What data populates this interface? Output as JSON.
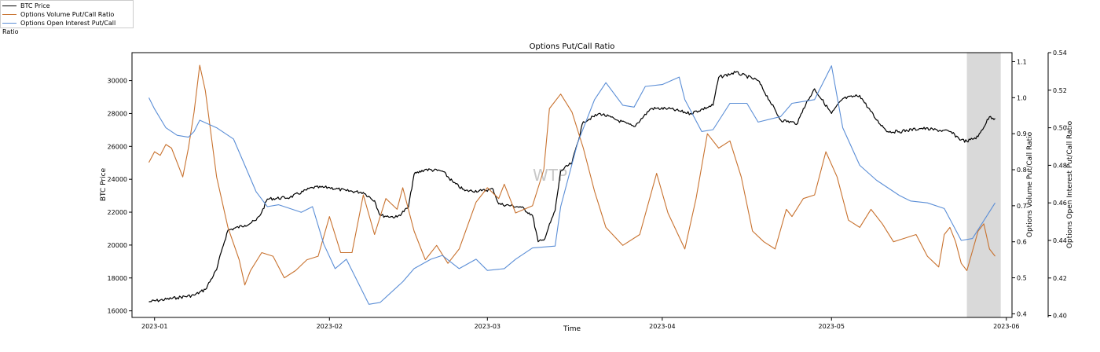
{
  "chart_data": {
    "type": "line",
    "title": "Options Put/Call Ratio",
    "xlabel": "Time",
    "watermark": "WTP",
    "x_ticks": [
      "2023-01",
      "2023-02",
      "2023-03",
      "2023-04",
      "2023-05",
      "2023-06"
    ],
    "x_range": [
      "2022-12-28",
      "2023-06-02"
    ],
    "shaded_region": [
      "2023-05-25",
      "2023-05-31"
    ],
    "axes": {
      "btc": {
        "label": "BTC Price",
        "ylim": [
          15600,
          31700
        ],
        "ticks": [
          16000,
          18000,
          20000,
          22000,
          24000,
          26000,
          28000,
          30000
        ]
      },
      "volume": {
        "label": "Options Volume Put/Call Ratio",
        "ylim": [
          0.39,
          1.125
        ],
        "ticks": [
          "0.4",
          "0.5",
          "0.6",
          "0.7",
          "0.8",
          "0.9",
          "1.0",
          "1.1"
        ]
      },
      "oi": {
        "label": "Options Open Interest Put/Call Ratio",
        "ylim": [
          0.399,
          0.54
        ],
        "ticks": [
          "0.40",
          "0.42",
          "0.44",
          "0.46",
          "0.48",
          "0.50",
          "0.52",
          "0.54"
        ]
      }
    },
    "series": [
      {
        "name": "BTC Price",
        "axis": "btc",
        "color": "#000000",
        "points": [
          [
            "2022-12-31",
            16550
          ],
          [
            "2023-01-05",
            16800
          ],
          [
            "2023-01-08",
            16950
          ],
          [
            "2023-01-10",
            17300
          ],
          [
            "2023-01-12",
            18500
          ],
          [
            "2023-01-13",
            19800
          ],
          [
            "2023-01-14",
            20900
          ],
          [
            "2023-01-17",
            21200
          ],
          [
            "2023-01-19",
            21500
          ],
          [
            "2023-01-20",
            22000
          ],
          [
            "2023-01-21",
            22800
          ],
          [
            "2023-01-25",
            22900
          ],
          [
            "2023-01-29",
            23500
          ],
          [
            "2023-02-01",
            23500
          ],
          [
            "2023-02-04",
            23300
          ],
          [
            "2023-02-07",
            23200
          ],
          [
            "2023-02-09",
            22700
          ],
          [
            "2023-02-10",
            21800
          ],
          [
            "2023-02-13",
            21700
          ],
          [
            "2023-02-15",
            22300
          ],
          [
            "2023-02-16",
            24300
          ],
          [
            "2023-02-18",
            24600
          ],
          [
            "2023-02-21",
            24500
          ],
          [
            "2023-02-23",
            23800
          ],
          [
            "2023-02-25",
            23300
          ],
          [
            "2023-02-28",
            23300
          ],
          [
            "2023-03-02",
            23400
          ],
          [
            "2023-03-03",
            22500
          ],
          [
            "2023-03-07",
            22300
          ],
          [
            "2023-03-09",
            21800
          ],
          [
            "2023-03-10",
            20200
          ],
          [
            "2023-03-11",
            20300
          ],
          [
            "2023-03-13",
            22100
          ],
          [
            "2023-03-14",
            24500
          ],
          [
            "2023-03-16",
            25000
          ],
          [
            "2023-03-18",
            27500
          ],
          [
            "2023-03-21",
            28000
          ],
          [
            "2023-03-24",
            27600
          ],
          [
            "2023-03-27",
            27200
          ],
          [
            "2023-03-30",
            28300
          ],
          [
            "2023-04-02",
            28300
          ],
          [
            "2023-04-06",
            28000
          ],
          [
            "2023-04-10",
            28500
          ],
          [
            "2023-04-11",
            30200
          ],
          [
            "2023-04-14",
            30500
          ],
          [
            "2023-04-18",
            30000
          ],
          [
            "2023-04-20",
            28800
          ],
          [
            "2023-04-22",
            27600
          ],
          [
            "2023-04-25",
            27400
          ],
          [
            "2023-04-26",
            28300
          ],
          [
            "2023-04-28",
            29500
          ],
          [
            "2023-05-01",
            28000
          ],
          [
            "2023-05-03",
            28900
          ],
          [
            "2023-05-06",
            29100
          ],
          [
            "2023-05-09",
            27600
          ],
          [
            "2023-05-11",
            26900
          ],
          [
            "2023-05-13",
            26900
          ],
          [
            "2023-05-17",
            27100
          ],
          [
            "2023-05-22",
            26900
          ],
          [
            "2023-05-24",
            26400
          ],
          [
            "2023-05-25",
            26300
          ],
          [
            "2023-05-27",
            26600
          ],
          [
            "2023-05-29",
            27800
          ],
          [
            "2023-05-30",
            27700
          ]
        ]
      },
      {
        "name": "Options Volume Put/Call Ratio",
        "axis": "volume",
        "color": "#c8722f",
        "points": [
          [
            "2022-12-31",
            0.82
          ],
          [
            "2023-01-01",
            0.85
          ],
          [
            "2023-01-02",
            0.84
          ],
          [
            "2023-01-03",
            0.87
          ],
          [
            "2023-01-04",
            0.86
          ],
          [
            "2023-01-06",
            0.78
          ],
          [
            "2023-01-07",
            0.86
          ],
          [
            "2023-01-08",
            0.96
          ],
          [
            "2023-01-09",
            1.09
          ],
          [
            "2023-01-10",
            1.02
          ],
          [
            "2023-01-12",
            0.78
          ],
          [
            "2023-01-14",
            0.64
          ],
          [
            "2023-01-16",
            0.55
          ],
          [
            "2023-01-17",
            0.48
          ],
          [
            "2023-01-18",
            0.52
          ],
          [
            "2023-01-20",
            0.57
          ],
          [
            "2023-01-22",
            0.56
          ],
          [
            "2023-01-24",
            0.5
          ],
          [
            "2023-01-26",
            0.52
          ],
          [
            "2023-01-28",
            0.55
          ],
          [
            "2023-01-30",
            0.56
          ],
          [
            "2023-02-01",
            0.67
          ],
          [
            "2023-02-03",
            0.57
          ],
          [
            "2023-02-05",
            0.57
          ],
          [
            "2023-02-07",
            0.73
          ],
          [
            "2023-02-09",
            0.62
          ],
          [
            "2023-02-11",
            0.72
          ],
          [
            "2023-02-13",
            0.69
          ],
          [
            "2023-02-14",
            0.75
          ],
          [
            "2023-02-16",
            0.63
          ],
          [
            "2023-02-18",
            0.55
          ],
          [
            "2023-02-20",
            0.59
          ],
          [
            "2023-02-22",
            0.54
          ],
          [
            "2023-02-24",
            0.58
          ],
          [
            "2023-02-27",
            0.71
          ],
          [
            "2023-03-01",
            0.75
          ],
          [
            "2023-03-03",
            0.72
          ],
          [
            "2023-03-04",
            0.76
          ],
          [
            "2023-03-06",
            0.68
          ],
          [
            "2023-03-09",
            0.7
          ],
          [
            "2023-03-11",
            0.8
          ],
          [
            "2023-03-12",
            0.97
          ],
          [
            "2023-03-14",
            1.01
          ],
          [
            "2023-03-16",
            0.96
          ],
          [
            "2023-03-18",
            0.86
          ],
          [
            "2023-03-20",
            0.74
          ],
          [
            "2023-03-22",
            0.64
          ],
          [
            "2023-03-25",
            0.59
          ],
          [
            "2023-03-28",
            0.62
          ],
          [
            "2023-03-31",
            0.79
          ],
          [
            "2023-04-02",
            0.68
          ],
          [
            "2023-04-05",
            0.58
          ],
          [
            "2023-04-07",
            0.72
          ],
          [
            "2023-04-09",
            0.9
          ],
          [
            "2023-04-11",
            0.86
          ],
          [
            "2023-04-13",
            0.88
          ],
          [
            "2023-04-15",
            0.78
          ],
          [
            "2023-04-17",
            0.63
          ],
          [
            "2023-04-19",
            0.6
          ],
          [
            "2023-04-21",
            0.58
          ],
          [
            "2023-04-23",
            0.69
          ],
          [
            "2023-04-24",
            0.67
          ],
          [
            "2023-04-26",
            0.72
          ],
          [
            "2023-04-28",
            0.73
          ],
          [
            "2023-04-30",
            0.85
          ],
          [
            "2023-05-02",
            0.78
          ],
          [
            "2023-05-04",
            0.66
          ],
          [
            "2023-05-06",
            0.64
          ],
          [
            "2023-05-08",
            0.69
          ],
          [
            "2023-05-10",
            0.65
          ],
          [
            "2023-05-12",
            0.6
          ],
          [
            "2023-05-14",
            0.61
          ],
          [
            "2023-05-16",
            0.62
          ],
          [
            "2023-05-18",
            0.56
          ],
          [
            "2023-05-20",
            0.53
          ],
          [
            "2023-05-21",
            0.62
          ],
          [
            "2023-05-22",
            0.64
          ],
          [
            "2023-05-23",
            0.6
          ],
          [
            "2023-05-24",
            0.54
          ],
          [
            "2023-05-25",
            0.52
          ],
          [
            "2023-05-27",
            0.63
          ],
          [
            "2023-05-28",
            0.65
          ],
          [
            "2023-05-29",
            0.58
          ],
          [
            "2023-05-30",
            0.56
          ]
        ]
      },
      {
        "name": "Options Open Interest Put/Call Ratio",
        "axis": "oi",
        "color": "#5b8ed6",
        "points": [
          [
            "2022-12-31",
            0.516
          ],
          [
            "2023-01-01",
            0.51
          ],
          [
            "2023-01-03",
            0.5
          ],
          [
            "2023-01-05",
            0.496
          ],
          [
            "2023-01-07",
            0.495
          ],
          [
            "2023-01-08",
            0.498
          ],
          [
            "2023-01-09",
            0.504
          ],
          [
            "2023-01-12",
            0.5
          ],
          [
            "2023-01-15",
            0.494
          ],
          [
            "2023-01-17",
            0.48
          ],
          [
            "2023-01-19",
            0.466
          ],
          [
            "2023-01-21",
            0.458
          ],
          [
            "2023-01-23",
            0.459
          ],
          [
            "2023-01-27",
            0.455
          ],
          [
            "2023-01-29",
            0.458
          ],
          [
            "2023-01-31",
            0.438
          ],
          [
            "2023-02-02",
            0.425
          ],
          [
            "2023-02-04",
            0.43
          ],
          [
            "2023-02-06",
            0.418
          ],
          [
            "2023-02-08",
            0.406
          ],
          [
            "2023-02-10",
            0.407
          ],
          [
            "2023-02-14",
            0.418
          ],
          [
            "2023-02-16",
            0.425
          ],
          [
            "2023-02-19",
            0.43
          ],
          [
            "2023-02-21",
            0.432
          ],
          [
            "2023-02-24",
            0.425
          ],
          [
            "2023-02-27",
            0.43
          ],
          [
            "2023-03-01",
            0.424
          ],
          [
            "2023-03-04",
            0.425
          ],
          [
            "2023-03-06",
            0.43
          ],
          [
            "2023-03-09",
            0.436
          ],
          [
            "2023-03-13",
            0.437
          ],
          [
            "2023-03-14",
            0.458
          ],
          [
            "2023-03-17",
            0.492
          ],
          [
            "2023-03-20",
            0.515
          ],
          [
            "2023-03-22",
            0.524
          ],
          [
            "2023-03-25",
            0.512
          ],
          [
            "2023-03-27",
            0.511
          ],
          [
            "2023-03-29",
            0.522
          ],
          [
            "2023-04-01",
            0.523
          ],
          [
            "2023-04-04",
            0.527
          ],
          [
            "2023-04-05",
            0.515
          ],
          [
            "2023-04-08",
            0.498
          ],
          [
            "2023-04-10",
            0.499
          ],
          [
            "2023-04-13",
            0.513
          ],
          [
            "2023-04-16",
            0.513
          ],
          [
            "2023-04-18",
            0.503
          ],
          [
            "2023-04-22",
            0.506
          ],
          [
            "2023-04-24",
            0.513
          ],
          [
            "2023-04-28",
            0.515
          ],
          [
            "2023-05-01",
            0.533
          ],
          [
            "2023-05-03",
            0.5
          ],
          [
            "2023-05-06",
            0.48
          ],
          [
            "2023-05-09",
            0.472
          ],
          [
            "2023-05-13",
            0.464
          ],
          [
            "2023-05-15",
            0.461
          ],
          [
            "2023-05-18",
            0.46
          ],
          [
            "2023-05-21",
            0.457
          ],
          [
            "2023-05-24",
            0.44
          ],
          [
            "2023-05-26",
            0.441
          ],
          [
            "2023-05-30",
            0.46
          ]
        ]
      }
    ]
  }
}
